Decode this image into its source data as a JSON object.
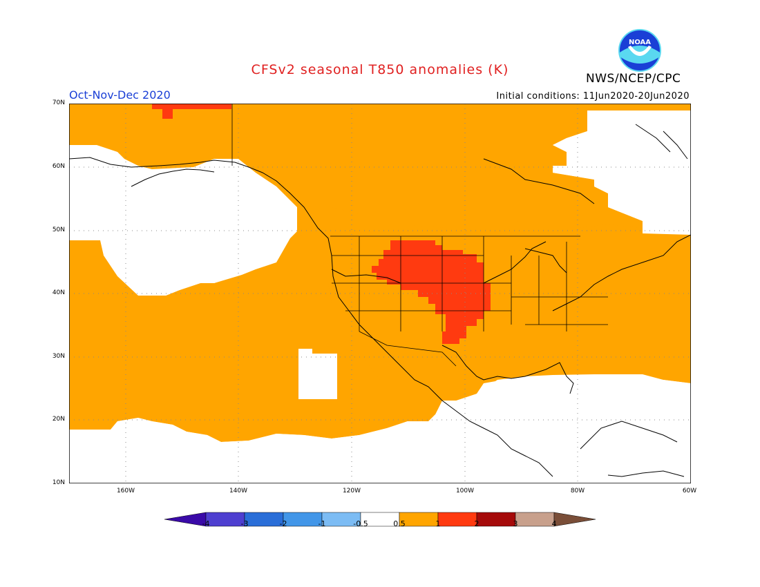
{
  "header": {
    "title": "CFSv2 seasonal T850 anomalies (K)",
    "agency": "NWS/NCEP/CPC",
    "season": "Oct-Nov-Dec 2020",
    "initial_conditions": "Initial conditions: 11Jun2020-20Jun2020",
    "logo_text": "NOAA"
  },
  "map": {
    "lat_labels": [
      "70N",
      "60N",
      "50N",
      "40N",
      "30N",
      "20N",
      "10N"
    ],
    "lon_labels": [
      "160W",
      "140W",
      "120W",
      "100W",
      "80W",
      "60W"
    ],
    "fill_colors": {
      "land_line": "#000000",
      "orange": "#ffa500",
      "red": "#ff3a10",
      "white": "#ffffff"
    }
  },
  "colorbar": {
    "labels": [
      "-4",
      "-3",
      "-2",
      "-1",
      "-0.5",
      "0.5",
      "1",
      "2",
      "3",
      "4"
    ],
    "colors": [
      "#3a0aa8",
      "#4e3fd0",
      "#2a6ed8",
      "#4296e8",
      "#7cbcf4",
      "#ffffff",
      "#ffa500",
      "#ff3a10",
      "#a50a0a",
      "#c8a08c",
      "#7a4e38"
    ]
  }
}
